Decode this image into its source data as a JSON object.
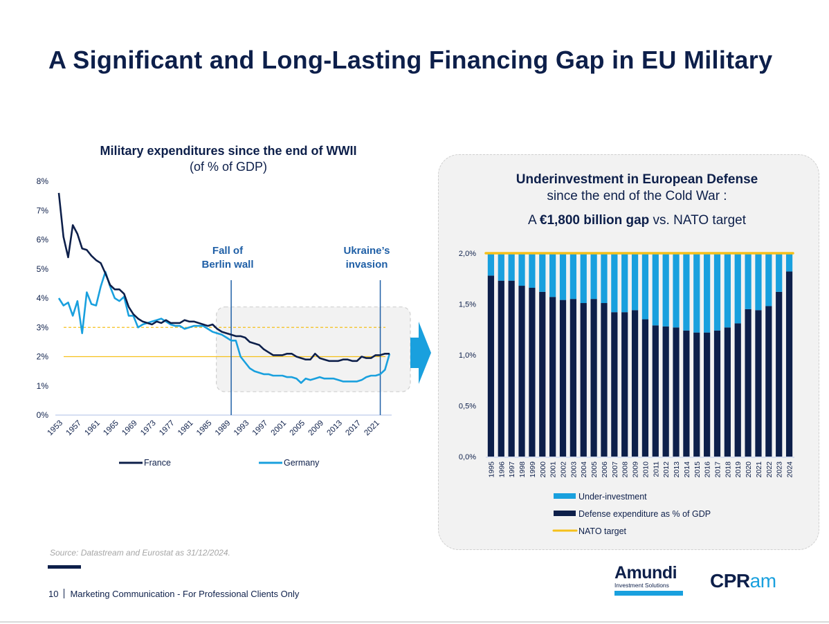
{
  "page": {
    "title": "A Significant and Long-Lasting Financing Gap in EU Military",
    "source": "Source: Datastream and Eurostat as 31/12/2024.",
    "page_number": "10",
    "footer_text": "Marketing Communication - For Professional Clients Only",
    "logos": {
      "amundi_name": "Amundi",
      "amundi_sub": "Investment Solutions",
      "cpram_part1": "CPR",
      "cpram_part2": "am"
    },
    "colors": {
      "navy": "#0d1f4a",
      "light_blue": "#19a0de",
      "nato_yellow": "#f5c01a",
      "annotation_blue": "#1f5fa6",
      "panel_grey": "#f2f2f2"
    }
  },
  "left_chart": {
    "title_bold": "Military expenditures since the end of WWII",
    "title_sub": "(of % of GDP)"
  },
  "right_chart": {
    "title_bold": "Underinvestment in European Defense",
    "title_sub": "since the end of the Cold War :",
    "gap_prefix": "A ",
    "gap_bold": "€1,800 billion gap",
    "gap_suffix": " vs. NATO target"
  },
  "chart_data": [
    {
      "type": "line",
      "title": "Military expenditures since the end of WWII",
      "subtitle": "(of % of GDP)",
      "xlabel": "",
      "ylabel": "% of GDP",
      "ylim": [
        0,
        8
      ],
      "y_ticks": [
        "0%",
        "1%",
        "2%",
        "3%",
        "4%",
        "5%",
        "6%",
        "7%",
        "8%"
      ],
      "x_range": [
        1953,
        2024
      ],
      "x_ticks": [
        "1953",
        "1957",
        "1961",
        "1965",
        "1969",
        "1973",
        "1977",
        "1981",
        "1985",
        "1989",
        "1993",
        "1997",
        "2001",
        "2005",
        "2009",
        "2013",
        "2017",
        "2021"
      ],
      "legend": "bottom",
      "x": [
        1953,
        1954,
        1955,
        1956,
        1957,
        1958,
        1959,
        1960,
        1961,
        1962,
        1963,
        1964,
        1965,
        1966,
        1967,
        1968,
        1969,
        1970,
        1971,
        1972,
        1973,
        1974,
        1975,
        1976,
        1977,
        1978,
        1979,
        1980,
        1981,
        1982,
        1983,
        1984,
        1985,
        1986,
        1987,
        1988,
        1989,
        1990,
        1991,
        1992,
        1993,
        1994,
        1995,
        1996,
        1997,
        1998,
        1999,
        2000,
        2001,
        2002,
        2003,
        2004,
        2005,
        2006,
        2007,
        2008,
        2009,
        2010,
        2011,
        2012,
        2013,
        2014,
        2015,
        2016,
        2017,
        2018,
        2019,
        2020,
        2021,
        2022,
        2023,
        2024
      ],
      "series": [
        {
          "name": "France",
          "color": "#0d1f4a",
          "values": [
            7.6,
            6.1,
            5.4,
            6.5,
            6.2,
            5.7,
            5.65,
            5.45,
            5.3,
            5.2,
            4.85,
            4.45,
            4.3,
            4.3,
            4.15,
            3.7,
            3.45,
            3.3,
            3.2,
            3.15,
            3.1,
            3.2,
            3.15,
            3.25,
            3.15,
            3.15,
            3.15,
            3.25,
            3.2,
            3.2,
            3.15,
            3.1,
            3.05,
            3.1,
            2.95,
            2.85,
            2.8,
            2.75,
            2.7,
            2.7,
            2.65,
            2.5,
            2.45,
            2.4,
            2.25,
            2.15,
            2.05,
            2.05,
            2.05,
            2.1,
            2.1,
            2.0,
            1.95,
            1.9,
            1.9,
            2.1,
            1.95,
            1.9,
            1.85,
            1.85,
            1.85,
            1.9,
            1.9,
            1.85,
            1.85,
            2.0,
            1.95,
            1.95,
            2.05,
            2.05,
            2.1,
            2.1
          ]
        },
        {
          "name": "Germany",
          "color": "#19a0de",
          "values": [
            4.0,
            3.75,
            3.85,
            3.4,
            3.9,
            2.8,
            4.2,
            3.8,
            3.75,
            4.4,
            4.9,
            4.4,
            4.0,
            3.9,
            4.05,
            3.4,
            3.4,
            3.0,
            3.1,
            3.15,
            3.2,
            3.25,
            3.3,
            3.2,
            3.1,
            3.05,
            3.05,
            2.95,
            3.0,
            3.05,
            3.05,
            3.05,
            2.95,
            2.85,
            2.8,
            2.75,
            2.65,
            2.55,
            2.55,
            2.0,
            1.8,
            1.6,
            1.5,
            1.45,
            1.4,
            1.4,
            1.35,
            1.35,
            1.35,
            1.3,
            1.3,
            1.25,
            1.1,
            1.25,
            1.2,
            1.25,
            1.3,
            1.25,
            1.25,
            1.25,
            1.2,
            1.15,
            1.15,
            1.15,
            1.15,
            1.2,
            1.3,
            1.35,
            1.35,
            1.4,
            1.55,
            2.1
          ]
        }
      ],
      "reference_lines": [
        {
          "label": "",
          "value": 3.0,
          "style": "dashed",
          "color": "#f5c01a"
        },
        {
          "label": "",
          "value": 2.0,
          "style": "solid",
          "color": "#f5c01a"
        }
      ],
      "annotations": [
        {
          "text_line1": "Fall of",
          "text_line2": "Berlin wall",
          "x": 1990
        },
        {
          "text_line1": "Ukraine’s",
          "text_line2": "invasion",
          "x": 2022
        }
      ],
      "highlight_region": {
        "x_from": 1988,
        "x_to": 2024,
        "y_from": 0.8,
        "y_to": 3.7
      }
    },
    {
      "type": "bar",
      "stacked": true,
      "title": "Underinvestment in European Defense",
      "subtitle": "since the end of the Cold War : A €1,800 billion gap vs. NATO target",
      "xlabel": "",
      "ylabel": "% of GDP",
      "ylim": [
        0,
        2.0
      ],
      "y_ticks": [
        "0,0%",
        "0,5%",
        "1,0%",
        "1,5%",
        "2,0%"
      ],
      "legend": "bottom",
      "categories": [
        "1995",
        "1996",
        "1997",
        "1998",
        "1999",
        "2000",
        "2001",
        "2002",
        "2003",
        "2004",
        "2005",
        "2006",
        "2007",
        "2008",
        "2009",
        "2010",
        "2011",
        "2012",
        "2013",
        "2014",
        "2015",
        "2016",
        "2017",
        "2018",
        "2019",
        "2020",
        "2021",
        "2022",
        "2023",
        "2024"
      ],
      "series": [
        {
          "name": "Defense expenditure as % of GDP",
          "color": "#0d1f4a",
          "values": [
            1.78,
            1.73,
            1.73,
            1.68,
            1.66,
            1.62,
            1.57,
            1.54,
            1.55,
            1.51,
            1.55,
            1.51,
            1.42,
            1.42,
            1.44,
            1.35,
            1.29,
            1.28,
            1.27,
            1.24,
            1.22,
            1.22,
            1.24,
            1.27,
            1.31,
            1.45,
            1.44,
            1.48,
            1.62,
            1.82
          ]
        },
        {
          "name": "Under-investment",
          "color": "#19a0de",
          "values": [
            0.22,
            0.27,
            0.27,
            0.32,
            0.34,
            0.38,
            0.43,
            0.46,
            0.45,
            0.49,
            0.45,
            0.49,
            0.58,
            0.58,
            0.56,
            0.65,
            0.71,
            0.72,
            0.73,
            0.76,
            0.78,
            0.78,
            0.76,
            0.73,
            0.69,
            0.55,
            0.56,
            0.52,
            0.38,
            0.18
          ]
        }
      ],
      "reference_lines": [
        {
          "label": "NATO target",
          "value": 2.0,
          "color": "#f5c01a"
        }
      ],
      "legend_entries": [
        "Under-investment",
        "Defense expenditure as % of GDP",
        "NATO target"
      ]
    }
  ]
}
